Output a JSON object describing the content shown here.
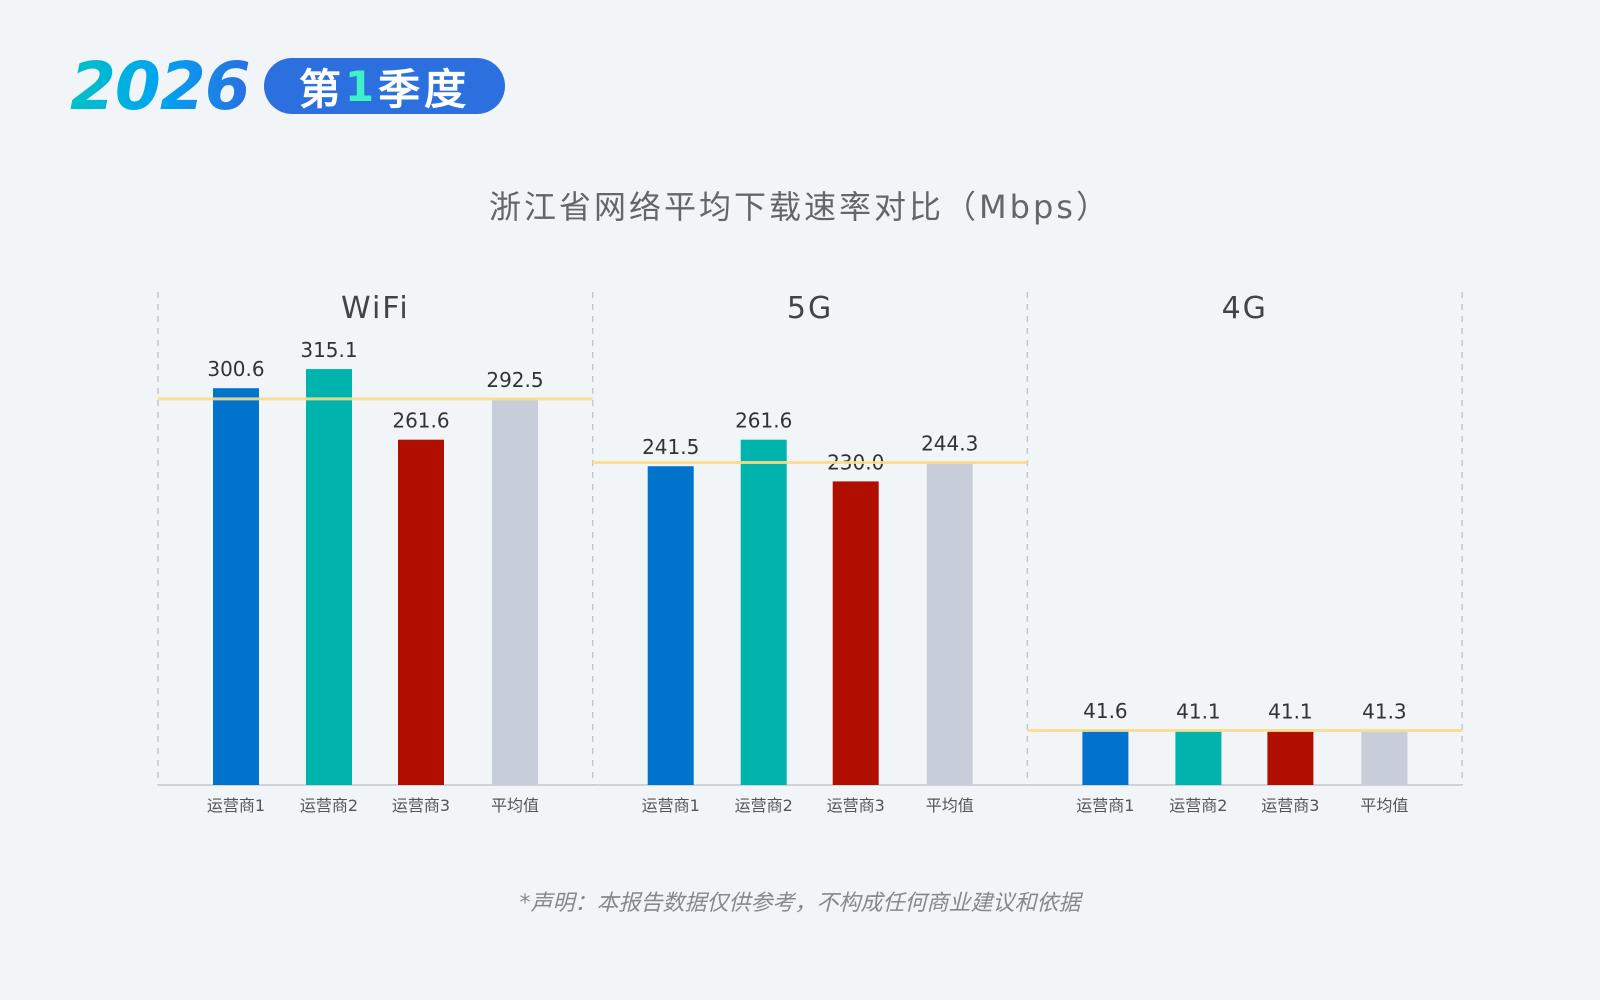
{
  "header": {
    "year": "2026",
    "quarter_prefix": "第",
    "quarter_num": "1",
    "quarter_suffix": "季度"
  },
  "chart_data": {
    "type": "bar",
    "title": "浙江省网络平均下载速率对比（Mbps）",
    "categories": [
      "运营商1",
      "运营商2",
      "运营商3",
      "平均值"
    ],
    "groups": [
      {
        "name": "WiFi",
        "values": [
          300.6,
          315.1,
          261.6,
          292.5
        ]
      },
      {
        "name": "5G",
        "values": [
          241.5,
          261.6,
          230.0,
          244.3
        ]
      },
      {
        "name": "4G",
        "values": [
          41.6,
          41.1,
          41.1,
          41.3
        ]
      }
    ],
    "colors": [
      "#0073cc",
      "#00b4ae",
      "#b00f00",
      "#c8ced9"
    ],
    "average_line_color": "#f8de8c",
    "ylim": [
      0,
      340
    ],
    "grid": false
  },
  "disclaimer": "*声明：本报告数据仅供参考，不构成任何商业建议和依据"
}
